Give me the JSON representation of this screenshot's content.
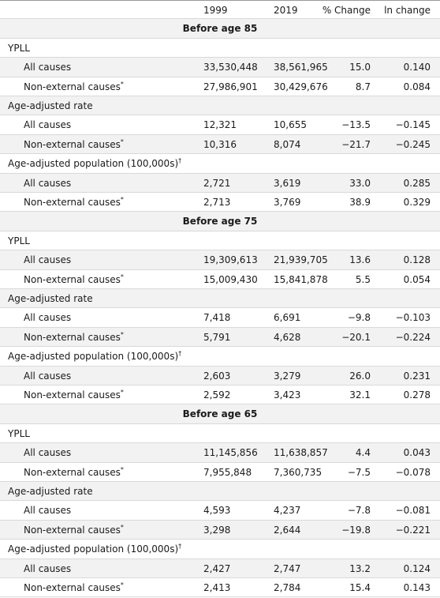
{
  "table": {
    "header": [
      "1999",
      "2019",
      "% Change",
      "ln change"
    ],
    "sections": [
      {
        "title": "Before age 85",
        "groups": [
          {
            "label": "YPLL",
            "rows": [
              {
                "label": "All causes",
                "cells": [
                  "33,530,448",
                  "38,561,965",
                  "15.0",
                  "0.140"
                ]
              },
              {
                "label": "Non-external causes",
                "note": "*",
                "cells": [
                  "27,986,901",
                  "30,429,676",
                  "8.7",
                  "0.084"
                ]
              }
            ]
          },
          {
            "label": "Age-adjusted rate",
            "rows": [
              {
                "label": "All causes",
                "cells": [
                  "12,321",
                  "10,655",
                  "−13.5",
                  "−0.145"
                ]
              },
              {
                "label": "Non-external causes",
                "note": "*",
                "cells": [
                  "10,316",
                  "8,074",
                  "−21.7",
                  "−0.245"
                ]
              }
            ]
          },
          {
            "label": "Age-adjusted population (100,000s)",
            "note": "†",
            "rows": [
              {
                "label": "All causes",
                "cells": [
                  "2,721",
                  "3,619",
                  "33.0",
                  "0.285"
                ]
              },
              {
                "label": "Non-external causes",
                "note": "*",
                "cells": [
                  "2,713",
                  "3,769",
                  "38.9",
                  "0.329"
                ]
              }
            ]
          }
        ]
      },
      {
        "title": "Before age 75",
        "groups": [
          {
            "label": "YPLL",
            "rows": [
              {
                "label": "All causes",
                "cells": [
                  "19,309,613",
                  "21,939,705",
                  "13.6",
                  "0.128"
                ]
              },
              {
                "label": "Non-external causes",
                "note": "*",
                "cells": [
                  "15,009,430",
                  "15,841,878",
                  "5.5",
                  "0.054"
                ]
              }
            ]
          },
          {
            "label": "Age-adjusted rate",
            "rows": [
              {
                "label": "All causes",
                "cells": [
                  "7,418",
                  "6,691",
                  "−9.8",
                  "−0.103"
                ]
              },
              {
                "label": "Non-external causes",
                "note": "*",
                "cells": [
                  "5,791",
                  "4,628",
                  "−20.1",
                  "−0.224"
                ]
              }
            ]
          },
          {
            "label": "Age-adjusted population (100,000s)",
            "note": "†",
            "rows": [
              {
                "label": "All causes",
                "cells": [
                  "2,603",
                  "3,279",
                  "26.0",
                  "0.231"
                ]
              },
              {
                "label": "Non-external causes",
                "note": "*",
                "cells": [
                  "2,592",
                  "3,423",
                  "32.1",
                  "0.278"
                ]
              }
            ]
          }
        ]
      },
      {
        "title": "Before age 65",
        "groups": [
          {
            "label": "YPLL",
            "rows": [
              {
                "label": "All causes",
                "cells": [
                  "11,145,856",
                  "11,638,857",
                  "4.4",
                  "0.043"
                ]
              },
              {
                "label": "Non-external causes",
                "note": "*",
                "cells": [
                  "7,955,848",
                  "7,360,735",
                  "−7.5",
                  "−0.078"
                ]
              }
            ]
          },
          {
            "label": "Age-adjusted rate",
            "rows": [
              {
                "label": "All causes",
                "cells": [
                  "4,593",
                  "4,237",
                  "−7.8",
                  "−0.081"
                ]
              },
              {
                "label": "Non-external causes",
                "note": "*",
                "cells": [
                  "3,298",
                  "2,644",
                  "−19.8",
                  "−0.221"
                ]
              }
            ]
          },
          {
            "label": "Age-adjusted population (100,000s)",
            "note": "†",
            "rows": [
              {
                "label": "All causes",
                "cells": [
                  "2,427",
                  "2,747",
                  "13.2",
                  "0.124"
                ]
              },
              {
                "label": "Non-external causes",
                "note": "*",
                "cells": [
                  "2,413",
                  "2,784",
                  "15.4",
                  "0.143"
                ]
              }
            ]
          }
        ]
      }
    ]
  }
}
